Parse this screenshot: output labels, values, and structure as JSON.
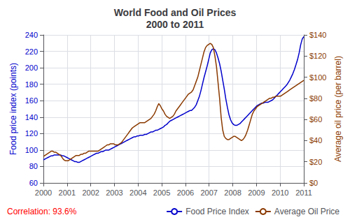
{
  "chart_data": {
    "type": "line",
    "title": "World Food and Oil Prices\n2000 to 2011",
    "ylabel": "Food price index (points)",
    "y2label": "Average oil price (per barrel)",
    "xlim": [
      2000,
      2011
    ],
    "xticks": [
      2000,
      2001,
      2002,
      2003,
      2004,
      2005,
      2006,
      2007,
      2008,
      2009,
      2010,
      2011
    ],
    "ylim": [
      60,
      240
    ],
    "yticks": [
      60,
      80,
      100,
      120,
      140,
      160,
      180,
      200,
      220,
      240
    ],
    "y2lim": [
      0,
      140
    ],
    "y2ticks": [
      {
        "value": 0,
        "label": "$0"
      },
      {
        "value": 20,
        "label": "$20"
      },
      {
        "value": 40,
        "label": "$40"
      },
      {
        "value": 60,
        "label": "$60"
      },
      {
        "value": 80,
        "label": "$80"
      },
      {
        "value": 100,
        "label": "$100"
      },
      {
        "value": 120,
        "label": "$120"
      },
      {
        "value": 140,
        "label": "$140"
      }
    ],
    "grid": true,
    "legend": "bottom",
    "annotations": [
      {
        "text": "Correlation: 93.6%",
        "color": "red"
      }
    ],
    "x": [
      2000,
      2000.0659,
      2000.1317,
      2000.1976,
      2000.2635,
      2000.3293,
      2000.3952,
      2000.4611,
      2000.5269,
      2000.5928,
      2000.6587,
      2000.7246,
      2000.7904,
      2000.8563,
      2000.9222,
      2000.988,
      2001.0539,
      2001.1198,
      2001.1856,
      2001.2515,
      2001.3174,
      2001.3832,
      2001.4491,
      2001.515,
      2001.5808,
      2001.6467,
      2001.7126,
      2001.7784,
      2001.8443,
      2001.9102,
      2001.976,
      2002.0419,
      2002.1078,
      2002.1737,
      2002.2395,
      2002.3054,
      2002.3713,
      2002.4371,
      2002.503,
      2002.5689,
      2002.6347,
      2002.7006,
      2002.7665,
      2002.8323,
      2002.8982,
      2002.9641,
      2003.0299,
      2003.0958,
      2003.1617,
      2003.2275,
      2003.2934,
      2003.3593,
      2003.4251,
      2003.491,
      2003.5569,
      2003.6228,
      2003.6886,
      2003.7545,
      2003.8204,
      2003.8862,
      2003.9521,
      2004.018,
      2004.0838,
      2004.1497,
      2004.2156,
      2004.2814,
      2004.3473,
      2004.4132,
      2004.479,
      2004.5449,
      2004.6108,
      2004.6766,
      2004.7425,
      2004.8084,
      2004.8743,
      2004.9401,
      2005.006,
      2005.0719,
      2005.1377,
      2005.2036,
      2005.2695,
      2005.3353,
      2005.4012,
      2005.4671,
      2005.5329,
      2005.5988,
      2005.6647,
      2005.7305,
      2005.7964,
      2005.8623,
      2005.9281,
      2005.994,
      2006.0599,
      2006.1257,
      2006.1916,
      2006.2575,
      2006.3234,
      2006.3892,
      2006.4551,
      2006.521,
      2006.5868,
      2006.6527,
      2006.7186,
      2006.7844,
      2006.8503,
      2006.9162,
      2006.982,
      2007.0479,
      2007.1138,
      2007.1796,
      2007.2455,
      2007.3114,
      2007.3772,
      2007.4431,
      2007.509,
      2007.5749,
      2007.6407,
      2007.7066,
      2007.7725,
      2007.8383,
      2007.9042,
      2007.9701,
      2008.0359,
      2008.1018,
      2008.1677,
      2008.2335,
      2008.2994,
      2008.3653,
      2008.4311,
      2008.497,
      2008.5629,
      2008.6287,
      2008.6946,
      2008.7605,
      2008.8263,
      2008.8922,
      2008.9581,
      2009.024,
      2009.0898,
      2009.1557,
      2009.2216,
      2009.2874,
      2009.3533,
      2009.4192,
      2009.485,
      2009.5509,
      2009.6168,
      2009.6826,
      2009.7485,
      2009.8144,
      2009.8802,
      2009.9461,
      2010.012,
      2010.0778,
      2010.1437,
      2010.2096,
      2010.2754,
      2010.3413,
      2010.4072,
      2010.4731,
      2010.5389,
      2010.6048,
      2010.6707,
      2010.7365,
      2010.8024,
      2010.8683,
      2010.9341,
      2011
    ],
    "series": [
      {
        "name": "Food Price Index",
        "color": "#0000CC",
        "axis": "y",
        "values": [
          88,
          89,
          90,
          91,
          92,
          93,
          93,
          94,
          94,
          94,
          94,
          94,
          93,
          93,
          92,
          91,
          90,
          89,
          88,
          87,
          86,
          86,
          85,
          85,
          86,
          87,
          88,
          89,
          90,
          91,
          92,
          93,
          94,
          95,
          96,
          96,
          97,
          98,
          98,
          99,
          100,
          100,
          100,
          101,
          102,
          103,
          104,
          105,
          106,
          107,
          108,
          109,
          110,
          111,
          112,
          113,
          114,
          115,
          116,
          116,
          117,
          117,
          118,
          118,
          118,
          119,
          119,
          120,
          121,
          122,
          122,
          123,
          124,
          124,
          125,
          126,
          127,
          128,
          130,
          131,
          133,
          135,
          136,
          137,
          138,
          139,
          140,
          141,
          142,
          143,
          144,
          145,
          146,
          147,
          148,
          148,
          150,
          152,
          155,
          160,
          165,
          172,
          180,
          188,
          195,
          202,
          210,
          218,
          222,
          223,
          222,
          218,
          212,
          205,
          196,
          185,
          174,
          162,
          152,
          143,
          137,
          133,
          131,
          130,
          130,
          131,
          132,
          134,
          136,
          138,
          140,
          142,
          144,
          146,
          148,
          150,
          152,
          154,
          155,
          156,
          157,
          157,
          158,
          158,
          158,
          159,
          160,
          161,
          163,
          165,
          167,
          169,
          171,
          173,
          175,
          177,
          179,
          182,
          185,
          189,
          193,
          198,
          204,
          210,
          218,
          228,
          235,
          238
        ]
      },
      {
        "name": "Average Oil Price",
        "color": "#8B3A00",
        "axis": "y2",
        "values": [
          25,
          26,
          27,
          28,
          29,
          30,
          30,
          29,
          29,
          28,
          27,
          26,
          24,
          22,
          21,
          21,
          21,
          22,
          23,
          24,
          25,
          26,
          26,
          26,
          27,
          27,
          28,
          28,
          29,
          30,
          30,
          30,
          30,
          30,
          30,
          30,
          31,
          32,
          33,
          34,
          35,
          36,
          36,
          37,
          37,
          37,
          36,
          36,
          36,
          37,
          38,
          40,
          42,
          44,
          46,
          48,
          50,
          52,
          53,
          54,
          55,
          56,
          57,
          57,
          57,
          57,
          58,
          59,
          60,
          61,
          63,
          65,
          68,
          72,
          75,
          73,
          70,
          68,
          65,
          63,
          62,
          61,
          62,
          63,
          65,
          68,
          70,
          72,
          74,
          76,
          78,
          80,
          82,
          84,
          85,
          86,
          88,
          92,
          96,
          100,
          106,
          112,
          118,
          124,
          128,
          130,
          131,
          132,
          131,
          128,
          120,
          110,
          95,
          80,
          62,
          50,
          44,
          42,
          41,
          41,
          42,
          43,
          44,
          44,
          43,
          42,
          41,
          40,
          41,
          43,
          46,
          50,
          55,
          60,
          65,
          68,
          70,
          72,
          73,
          74,
          75,
          76,
          77,
          78,
          79,
          80,
          80,
          81,
          81,
          82,
          82,
          82,
          82,
          83,
          84,
          85,
          86,
          87,
          88,
          89,
          90,
          91,
          92,
          93,
          94,
          95,
          96,
          97
        ]
      }
    ]
  }
}
